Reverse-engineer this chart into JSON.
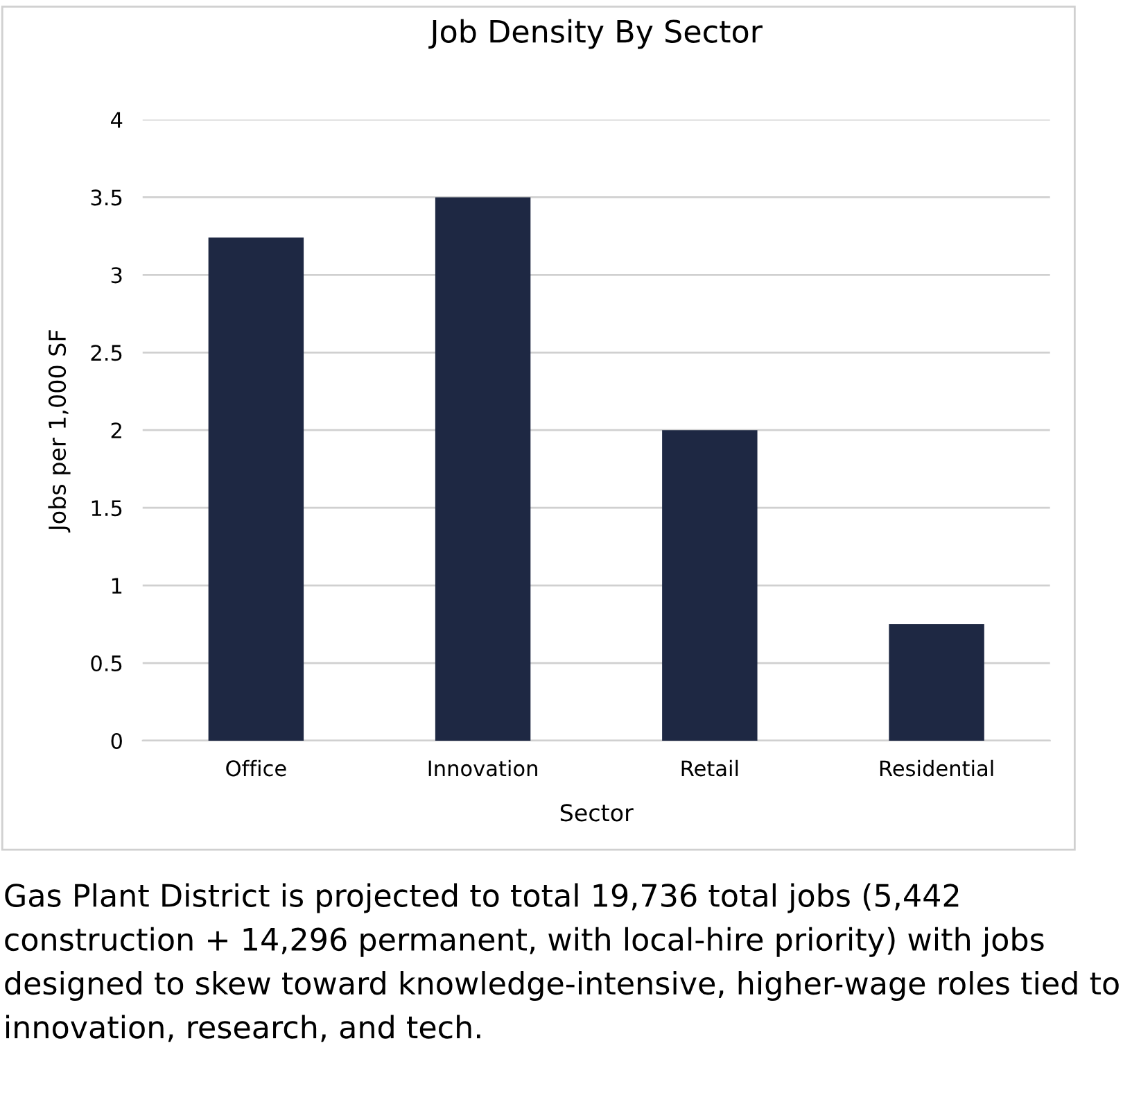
{
  "chart_data": {
    "type": "bar",
    "title": "Job Density By Sector",
    "xlabel": "Sector",
    "ylabel": "Jobs per 1,000 SF",
    "categories": [
      "Office",
      "Innovation",
      "Retail",
      "Residential"
    ],
    "values": [
      3.24,
      3.5,
      2.0,
      0.75
    ],
    "color": "#1e2843",
    "ylim": [
      0,
      4
    ],
    "yticks": [
      0,
      0.5,
      1,
      1.5,
      2,
      2.5,
      3,
      3.5,
      4
    ],
    "grid": "y",
    "annotations": [
      "Gas Plant District is projected to total 19,736 total jobs (5,442 construction + 14,296 permanent, with local-hire priority) with jobs designed to skew toward knowledge-intensive, higher-wage roles tied to innovation, research, and tech."
    ]
  }
}
